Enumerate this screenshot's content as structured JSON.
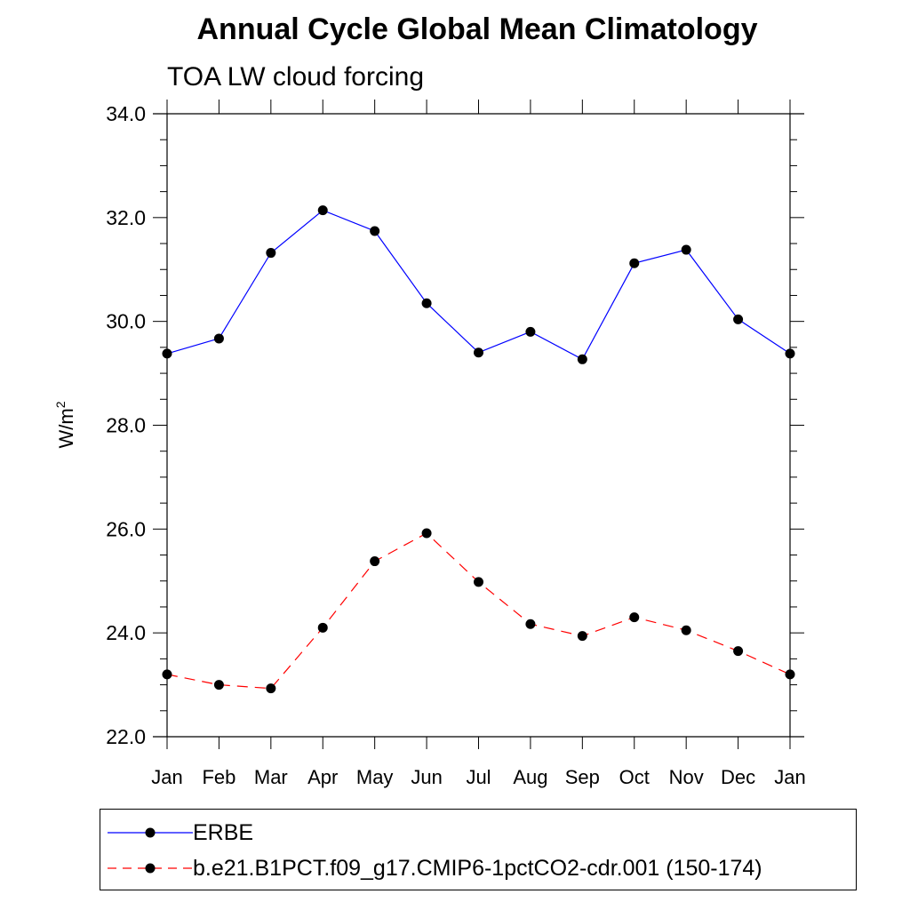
{
  "chart_data": {
    "type": "line",
    "title": "Annual Cycle Global Mean Climatology",
    "subtitle": "TOA LW cloud forcing",
    "ylabel": "W/m",
    "ylabel_sup": "2",
    "xlabel": "",
    "categories": [
      "Jan",
      "Feb",
      "Mar",
      "Apr",
      "May",
      "Jun",
      "Jul",
      "Aug",
      "Sep",
      "Oct",
      "Nov",
      "Dec",
      "Jan"
    ],
    "ylim": [
      22.0,
      34.0
    ],
    "yticks": [
      "22.0",
      "24.0",
      "26.0",
      "28.0",
      "30.0",
      "32.0",
      "34.0"
    ],
    "series": [
      {
        "name": "ERBE",
        "color": "#0000ff",
        "dash": "solid",
        "marker": "filled-circle",
        "values": [
          29.38,
          29.67,
          31.32,
          32.14,
          31.74,
          30.35,
          29.4,
          29.8,
          29.27,
          31.12,
          31.38,
          30.04,
          29.38
        ]
      },
      {
        "name": "b.e21.B1PCT.f09_g17.CMIP6-1pctCO2-cdr.001 (150-174)",
        "color": "#ff0000",
        "dash": "dashed",
        "marker": "filled-circle",
        "values": [
          23.2,
          23.0,
          22.93,
          24.1,
          25.38,
          25.92,
          24.98,
          24.17,
          23.94,
          24.3,
          24.05,
          23.65,
          23.2
        ]
      }
    ],
    "legend_position": "bottom"
  }
}
